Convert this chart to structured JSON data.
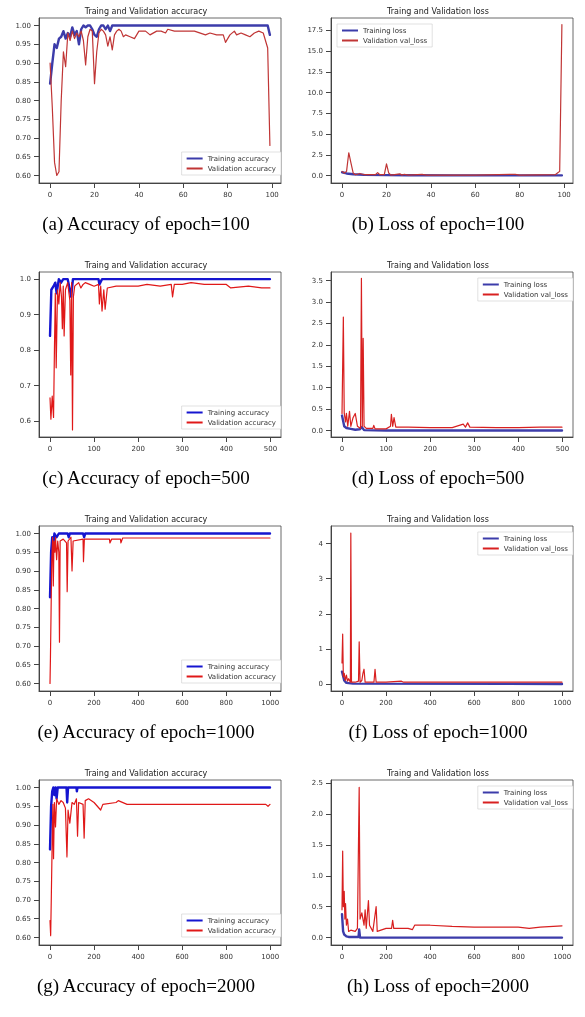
{
  "chart_data": [
    {
      "type": "line",
      "title": "Traing and Validation accuracy",
      "annotations": [
        "(a) Accuracy of epoch=100"
      ],
      "legend": "bottom right",
      "grid": false,
      "marker": "none",
      "line_style": "solid",
      "xlim": [
        -5,
        104
      ],
      "xticks": [
        0,
        20,
        40,
        60,
        80,
        100
      ],
      "ylim": [
        0.58,
        1.02
      ],
      "yticks": [
        {
          "value": 0.6,
          "label": "0.60"
        },
        0.65,
        {
          "value": 0.7,
          "label": "0.70"
        },
        0.75,
        {
          "value": 0.8,
          "label": "0.80"
        },
        0.85,
        {
          "value": 0.9,
          "label": "0.90"
        },
        0.95,
        {
          "value": 1.0,
          "label": "1.00"
        }
      ],
      "series": [
        {
          "name": "Training accuracy",
          "color": "#3c3caa",
          "x": [
            0,
            1,
            2,
            3,
            4,
            5,
            6,
            7,
            8,
            9,
            10,
            11,
            12,
            13,
            14,
            15,
            16,
            17,
            18,
            19,
            20,
            21,
            22,
            23,
            24,
            25,
            26,
            27,
            28,
            30,
            35,
            60,
            97,
            98,
            99
          ],
          "values": [
            0.845,
            0.9,
            0.95,
            0.94,
            0.965,
            0.97,
            0.985,
            0.965,
            0.98,
            0.97,
            0.995,
            0.975,
            0.985,
            0.95,
            0.99,
            1.0,
            0.995,
            1.0,
            1.0,
            0.99,
            0.975,
            0.97,
            0.99,
            1.0,
            1.0,
            0.99,
            1.0,
            0.985,
            1.0,
            1.0,
            1.0,
            1.0,
            1.0,
            1.0,
            0.975
          ]
        },
        {
          "name": "Validation accuracy",
          "color": "#c03535",
          "x": [
            0,
            1,
            2,
            3,
            4,
            5,
            6,
            7,
            8,
            9,
            10,
            11,
            12,
            13,
            14,
            15,
            16,
            17,
            18,
            19,
            20,
            21,
            22,
            23,
            24,
            25,
            26,
            27,
            28,
            29,
            30,
            31,
            32,
            33,
            34,
            36,
            38,
            40,
            43,
            45,
            48,
            50,
            52,
            53,
            56,
            60,
            65,
            70,
            72,
            75,
            78,
            79,
            81,
            83,
            84,
            86,
            88,
            90,
            92,
            94,
            96,
            98,
            99
          ],
          "values": [
            0.9,
            0.78,
            0.635,
            0.6,
            0.61,
            0.8,
            0.93,
            0.89,
            0.98,
            0.96,
            0.985,
            0.965,
            0.98,
            0.97,
            0.985,
            0.96,
            0.895,
            0.97,
            0.99,
            0.985,
            0.845,
            0.93,
            0.98,
            0.99,
            0.985,
            0.975,
            0.945,
            0.97,
            0.935,
            0.975,
            0.985,
            0.99,
            0.985,
            0.97,
            0.975,
            0.97,
            0.965,
            0.985,
            0.985,
            0.975,
            0.985,
            0.985,
            0.98,
            0.99,
            0.985,
            0.985,
            0.985,
            0.975,
            0.98,
            0.975,
            0.975,
            0.955,
            0.975,
            0.985,
            0.975,
            0.98,
            0.975,
            0.97,
            0.98,
            0.985,
            0.98,
            0.94,
            0.68
          ]
        }
      ]
    },
    {
      "type": "line",
      "title": "Traing and Validation loss",
      "annotations": [
        "(b) Loss of epoch=100"
      ],
      "legend": "top left",
      "grid": false,
      "marker": "none",
      "line_style": "solid",
      "xlim": [
        -5,
        104
      ],
      "xticks": [
        0,
        20,
        40,
        60,
        80,
        100
      ],
      "ylim": [
        -0.9,
        19.0
      ],
      "yticks": [
        {
          "value": 0,
          "label": "0.0"
        },
        2.5,
        {
          "value": 5,
          "label": "5.0"
        },
        7.5,
        {
          "value": 10,
          "label": "10.0"
        },
        12.5,
        {
          "value": 15,
          "label": "15.0"
        },
        17.5
      ],
      "series": [
        {
          "name": "Training loss",
          "color": "#3c3caa",
          "x": [
            0,
            2,
            5,
            10,
            20,
            30,
            50,
            99
          ],
          "values": [
            0.4,
            0.25,
            0.15,
            0.08,
            0.05,
            0.03,
            0.02,
            0.02
          ]
        },
        {
          "name": "Validation val_loss",
          "color": "#c03535",
          "x": [
            0,
            1,
            2,
            3,
            4,
            5,
            6,
            8,
            10,
            15,
            16,
            17,
            19,
            20,
            21,
            22,
            26,
            27,
            28,
            30,
            36,
            38,
            60,
            78,
            80,
            96,
            97,
            98,
            99
          ],
          "values": [
            0.5,
            0.3,
            0.5,
            2.75,
            1.5,
            0.3,
            0.1,
            0.25,
            0.1,
            0.1,
            0.35,
            0.1,
            0.1,
            1.4,
            0.3,
            0.05,
            0.2,
            0.05,
            0.15,
            0.05,
            0.15,
            0.05,
            0.05,
            0.15,
            0.05,
            0.1,
            0.3,
            0.5,
            18.2
          ]
        }
      ]
    },
    {
      "type": "line",
      "title": "Traing and Validation accuracy",
      "annotations": [
        "(c) Accuracy of epoch=500"
      ],
      "legend": "bottom right",
      "grid": false,
      "marker": "none",
      "line_style": "solid",
      "xlim": [
        -25,
        524
      ],
      "xticks": [
        0,
        100,
        200,
        300,
        400,
        500
      ],
      "ylim": [
        0.555,
        1.02
      ],
      "yticks": [
        0.6,
        0.7,
        0.8,
        0.9,
        {
          "value": 1.0,
          "label": "1.0"
        }
      ],
      "series": [
        {
          "name": "Training accuracy",
          "color": "#1515d0",
          "x": [
            0,
            3,
            8,
            12,
            15,
            20,
            25,
            30,
            40,
            45,
            48,
            52,
            110,
            112,
            118,
            499
          ],
          "values": [
            0.84,
            0.97,
            0.98,
            0.99,
            0.96,
            1.0,
            0.99,
            1.0,
            1.0,
            0.97,
            0.95,
            1.0,
            1.0,
            0.985,
            1.0,
            1.0
          ]
        },
        {
          "name": "Validation accuracy",
          "color": "#e01818",
          "x": [
            0,
            2,
            5,
            8,
            10,
            12,
            14,
            17,
            20,
            23,
            26,
            28,
            30,
            32,
            35,
            40,
            45,
            47,
            49,
            51,
            53,
            56,
            60,
            65,
            70,
            75,
            80,
            90,
            100,
            110,
            112,
            115,
            118,
            122,
            125,
            130,
            150,
            200,
            220,
            250,
            275,
            278,
            282,
            300,
            320,
            350,
            400,
            410,
            450,
            480,
            499
          ],
          "values": [
            0.665,
            0.605,
            0.67,
            0.61,
            0.8,
            0.96,
            0.75,
            0.97,
            0.93,
            0.99,
            0.95,
            0.86,
            0.98,
            0.84,
            0.97,
            0.99,
            0.94,
            0.73,
            0.99,
            0.575,
            0.95,
            0.98,
            0.985,
            0.99,
            0.975,
            0.985,
            0.99,
            0.985,
            0.98,
            0.985,
            0.93,
            0.98,
            0.91,
            0.97,
            0.915,
            0.975,
            0.98,
            0.98,
            0.985,
            0.98,
            0.985,
            0.95,
            0.985,
            0.985,
            0.99,
            0.985,
            0.985,
            0.975,
            0.98,
            0.975,
            0.975
          ]
        }
      ]
    },
    {
      "type": "line",
      "title": "Traing and Validation loss",
      "annotations": [
        "(d) Loss of epoch=500"
      ],
      "legend": "top right",
      "grid": false,
      "marker": "none",
      "line_style": "solid",
      "xlim": [
        -25,
        524
      ],
      "xticks": [
        0,
        100,
        200,
        300,
        400,
        500
      ],
      "ylim": [
        -0.15,
        3.7
      ],
      "yticks": [
        {
          "value": 0,
          "label": "0.0"
        },
        0.5,
        {
          "value": 1,
          "label": "1.0"
        },
        1.5,
        {
          "value": 2,
          "label": "2.0"
        },
        2.5,
        {
          "value": 3,
          "label": "3.0"
        },
        3.5
      ],
      "series": [
        {
          "name": "Training loss",
          "color": "#3c3caa",
          "x": [
            0,
            5,
            10,
            20,
            30,
            40,
            45,
            50,
            100,
            499
          ],
          "values": [
            0.35,
            0.1,
            0.06,
            0.04,
            0.02,
            0.03,
            0.08,
            0.01,
            0.0,
            0.0
          ]
        },
        {
          "name": "Validation val_loss",
          "color": "#d82020",
          "x": [
            0,
            3,
            5,
            8,
            10,
            13,
            17,
            20,
            25,
            30,
            35,
            42,
            44,
            46,
            48,
            50,
            55,
            70,
            72,
            75,
            100,
            110,
            112,
            115,
            118,
            122,
            150,
            200,
            250,
            275,
            280,
            285,
            290,
            350,
            400,
            450,
            499
          ],
          "values": [
            0.4,
            2.65,
            0.4,
            0.2,
            0.4,
            0.1,
            0.45,
            0.1,
            0.3,
            0.4,
            0.1,
            0.05,
            3.55,
            0.1,
            2.15,
            0.1,
            0.05,
            0.05,
            0.12,
            0.04,
            0.04,
            0.1,
            0.38,
            0.1,
            0.3,
            0.08,
            0.08,
            0.07,
            0.07,
            0.15,
            0.08,
            0.18,
            0.08,
            0.07,
            0.07,
            0.08,
            0.08
          ]
        }
      ]
    },
    {
      "type": "line",
      "title": "Traing and Validation accuracy",
      "annotations": [
        "(e) Accuracy of epoch=1000"
      ],
      "legend": "bottom right",
      "grid": false,
      "marker": "none",
      "line_style": "solid",
      "xlim": [
        -50,
        1049
      ],
      "xticks": [
        0,
        200,
        400,
        600,
        800,
        1000
      ],
      "ylim": [
        0.58,
        1.02
      ],
      "yticks": [
        {
          "value": 0.6,
          "label": "0.60"
        },
        0.65,
        {
          "value": 0.7,
          "label": "0.70"
        },
        0.75,
        {
          "value": 0.8,
          "label": "0.80"
        },
        0.85,
        {
          "value": 0.9,
          "label": "0.90"
        },
        0.95,
        {
          "value": 1.0,
          "label": "1.00"
        }
      ],
      "series": [
        {
          "name": "Training accuracy",
          "color": "#1515d0",
          "x": [
            0,
            5,
            10,
            15,
            20,
            30,
            40,
            80,
            85,
            90,
            150,
            155,
            160,
            999
          ],
          "values": [
            0.83,
            0.95,
            0.99,
            0.97,
            1.0,
            0.99,
            1.0,
            1.0,
            0.99,
            1.0,
            1.0,
            0.99,
            1.0,
            1.0
          ]
        },
        {
          "name": "Validation accuracy",
          "color": "#e01818",
          "x": [
            0,
            2,
            5,
            8,
            12,
            15,
            18,
            22,
            25,
            30,
            35,
            40,
            43,
            46,
            60,
            75,
            78,
            82,
            95,
            100,
            105,
            150,
            152,
            156,
            200,
            270,
            272,
            280,
            320,
            322,
            330,
            999
          ],
          "values": [
            0.6,
            0.67,
            0.8,
            0.93,
            0.99,
            0.86,
            0.98,
            0.95,
            0.99,
            0.93,
            0.98,
            0.95,
            0.71,
            0.98,
            0.985,
            0.975,
            0.845,
            0.98,
            0.99,
            0.9,
            0.98,
            0.985,
            0.925,
            0.985,
            0.985,
            0.985,
            0.975,
            0.985,
            0.985,
            0.975,
            0.988,
            0.988
          ]
        }
      ]
    },
    {
      "type": "line",
      "title": "Traing and Validation loss",
      "annotations": [
        "(f) Loss of epoch=1000"
      ],
      "legend": "top right",
      "grid": false,
      "marker": "none",
      "line_style": "solid",
      "xlim": [
        -50,
        1049
      ],
      "xticks": [
        0,
        200,
        400,
        600,
        800,
        1000
      ],
      "ylim": [
        -0.2,
        4.5
      ],
      "yticks": [
        0,
        1,
        2,
        3,
        4
      ],
      "series": [
        {
          "name": "Training loss",
          "color": "#3c3caa",
          "x": [
            0,
            10,
            20,
            50,
            999
          ],
          "values": [
            0.35,
            0.1,
            0.03,
            0.01,
            0.0
          ]
        },
        {
          "name": "Validation val_loss",
          "color": "#d82020",
          "x": [
            0,
            3,
            6,
            10,
            15,
            20,
            25,
            30,
            38,
            40,
            43,
            60,
            75,
            78,
            82,
            90,
            95,
            100,
            105,
            145,
            150,
            155,
            200,
            270,
            280,
            999
          ],
          "values": [
            0.6,
            1.42,
            0.2,
            0.3,
            0.1,
            0.25,
            0.08,
            0.15,
            0.05,
            4.3,
            0.05,
            0.05,
            0.08,
            1.2,
            0.05,
            0.1,
            0.3,
            0.42,
            0.05,
            0.05,
            0.42,
            0.05,
            0.05,
            0.08,
            0.05,
            0.05
          ]
        }
      ]
    },
    {
      "type": "line",
      "title": "Traing and Validation accuracy",
      "annotations": [
        "(g) Accuracy of epoch=2000"
      ],
      "legend": "bottom right",
      "grid": false,
      "marker": "none",
      "line_style": "solid",
      "xlim": [
        -50,
        1049
      ],
      "xticks": [
        0,
        200,
        400,
        600,
        800,
        1000
      ],
      "ylim": [
        0.58,
        1.02
      ],
      "yticks": [
        {
          "value": 0.6,
          "label": "0.60"
        },
        0.65,
        {
          "value": 0.7,
          "label": "0.70"
        },
        0.75,
        {
          "value": 0.8,
          "label": "0.80"
        },
        0.85,
        {
          "value": 0.9,
          "label": "0.90"
        },
        0.95,
        {
          "value": 1.0,
          "label": "1.00"
        }
      ],
      "series": [
        {
          "name": "Training accuracy",
          "color": "#1515d0",
          "x": [
            0,
            5,
            10,
            15,
            20,
            25,
            30,
            35,
            75,
            78,
            82,
            120,
            122,
            125,
            999
          ],
          "values": [
            0.835,
            0.95,
            0.99,
            1.0,
            0.98,
            1.0,
            0.97,
            1.0,
            1.0,
            0.96,
            1.0,
            1.0,
            0.99,
            1.0,
            1.0
          ]
        },
        {
          "name": "Validation accuracy",
          "color": "#e01818",
          "x": [
            0,
            3,
            6,
            10,
            13,
            16,
            20,
            25,
            30,
            40,
            50,
            60,
            70,
            77,
            82,
            90,
            100,
            110,
            120,
            125,
            130,
            150,
            155,
            160,
            175,
            200,
            230,
            240,
            300,
            310,
            350,
            400,
            450,
            500,
            600,
            700,
            800,
            900,
            980,
            990,
            999
          ],
          "values": [
            0.645,
            0.605,
            0.71,
            0.86,
            0.955,
            0.81,
            0.96,
            0.895,
            0.97,
            0.955,
            0.965,
            0.96,
            0.945,
            0.815,
            0.94,
            0.905,
            0.96,
            0.955,
            0.97,
            0.87,
            0.96,
            0.955,
            0.865,
            0.965,
            0.97,
            0.96,
            0.94,
            0.955,
            0.96,
            0.965,
            0.955,
            0.955,
            0.955,
            0.955,
            0.955,
            0.955,
            0.955,
            0.955,
            0.955,
            0.95,
            0.955
          ]
        }
      ]
    },
    {
      "type": "line",
      "title": "Traing and Validation loss",
      "annotations": [
        "(h) Loss of epoch=2000"
      ],
      "legend": "top right",
      "grid": false,
      "marker": "none",
      "line_style": "solid",
      "xlim": [
        -50,
        1049
      ],
      "xticks": [
        0,
        200,
        400,
        600,
        800,
        1000
      ],
      "ylim": [
        -0.12,
        2.55
      ],
      "yticks": [
        {
          "value": 0,
          "label": "0.0"
        },
        0.5,
        {
          "value": 1,
          "label": "1.0"
        },
        1.5,
        {
          "value": 2,
          "label": "2.0"
        },
        2.5
      ],
      "series": [
        {
          "name": "Training loss",
          "color": "#3c3caa",
          "x": [
            0,
            5,
            10,
            20,
            30,
            75,
            78,
            82,
            999
          ],
          "values": [
            0.38,
            0.1,
            0.05,
            0.02,
            0.01,
            0.01,
            0.13,
            0.0,
            0.0
          ]
        },
        {
          "name": "Validation val_loss",
          "color": "#d82020",
          "x": [
            0,
            3,
            6,
            10,
            13,
            16,
            20,
            25,
            30,
            40,
            60,
            70,
            78,
            82,
            90,
            100,
            105,
            110,
            120,
            125,
            140,
            155,
            160,
            200,
            225,
            230,
            235,
            300,
            320,
            330,
            400,
            500,
            600,
            700,
            800,
            850,
            900,
            999
          ],
          "values": [
            0.45,
            1.4,
            0.5,
            0.75,
            0.3,
            0.55,
            0.2,
            0.3,
            0.1,
            0.12,
            0.1,
            0.15,
            2.43,
            0.3,
            0.4,
            0.2,
            0.45,
            0.15,
            0.6,
            0.2,
            0.1,
            0.5,
            0.1,
            0.15,
            0.15,
            0.28,
            0.15,
            0.15,
            0.13,
            0.2,
            0.2,
            0.18,
            0.17,
            0.17,
            0.17,
            0.15,
            0.17,
            0.19
          ]
        }
      ]
    }
  ]
}
